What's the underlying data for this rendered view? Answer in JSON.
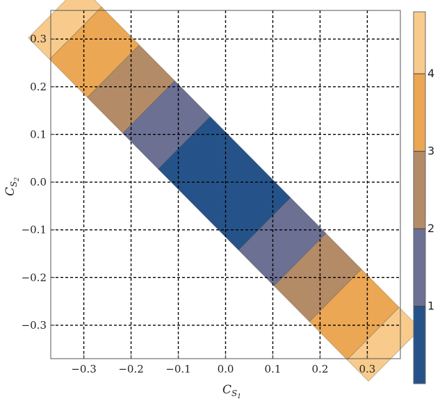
{
  "chart_data": {
    "type": "heatmap",
    "title": "",
    "xlabel": {
      "main": "C",
      "sub1": "S",
      "sub2": "1"
    },
    "ylabel": {
      "main": "C",
      "sub1": "S",
      "sub2": "2"
    },
    "xlim": [
      -0.37,
      0.37
    ],
    "ylim": [
      -0.37,
      0.36
    ],
    "x_ticks": [
      -0.3,
      -0.2,
      -0.1,
      0.0,
      0.1,
      0.2,
      0.3
    ],
    "x_tick_labels": [
      "−0.3",
      "−0.2",
      "−0.1",
      "0.0",
      "0.1",
      "0.2",
      "0.3"
    ],
    "y_ticks": [
      -0.3,
      -0.2,
      -0.1,
      0.0,
      0.1,
      0.2,
      0.3
    ],
    "y_tick_labels": [
      "−0.3",
      "−0.2",
      "−0.1",
      "0.0",
      "0.1",
      "0.2",
      "0.3"
    ],
    "grid": true,
    "grid_style": "dashed",
    "region": {
      "description_axis": "diagonal band along C_S2 = -C_S1",
      "corners": [
        [
          -0.36,
          0.245
        ],
        [
          -0.25,
          0.355
        ],
        [
          0.355,
          -0.245
        ],
        [
          0.245,
          -0.355
        ]
      ]
    },
    "value_range": [
      0,
      4.8
    ],
    "bands": [
      {
        "from_t": -0.36,
        "to_t": -0.315,
        "level": 4.4,
        "color": "#F8CB8C"
      },
      {
        "from_t": -0.315,
        "to_t": -0.235,
        "level": 3.5,
        "color": "#EBA753"
      },
      {
        "from_t": -0.235,
        "to_t": -0.16,
        "level": 2.5,
        "color": "#B48B67"
      },
      {
        "from_t": -0.16,
        "to_t": -0.085,
        "level": 1.5,
        "color": "#6C7093"
      },
      {
        "from_t": -0.085,
        "to_t": 0.085,
        "level": 0.5,
        "color": "#255389"
      },
      {
        "from_t": 0.085,
        "to_t": 0.16,
        "level": 1.5,
        "color": "#6C7093"
      },
      {
        "from_t": 0.16,
        "to_t": 0.235,
        "level": 2.5,
        "color": "#B48B67"
      },
      {
        "from_t": 0.235,
        "to_t": 0.315,
        "level": 3.5,
        "color": "#EBA753"
      },
      {
        "from_t": 0.315,
        "to_t": 0.36,
        "level": 4.4,
        "color": "#F8CB8C"
      }
    ],
    "colorbar": {
      "min": 0,
      "max": 4.8,
      "ticks": [
        1,
        2,
        3,
        4
      ],
      "tick_labels": [
        "1",
        "2",
        "3",
        "4"
      ],
      "segments": [
        {
          "from": 0,
          "to": 1,
          "color": "#255389"
        },
        {
          "from": 1,
          "to": 2,
          "color": "#6C7093"
        },
        {
          "from": 2,
          "to": 3,
          "color": "#B48B67"
        },
        {
          "from": 3,
          "to": 4,
          "color": "#EBA753"
        },
        {
          "from": 4,
          "to": 4.8,
          "color": "#F8CB8C"
        }
      ]
    }
  }
}
